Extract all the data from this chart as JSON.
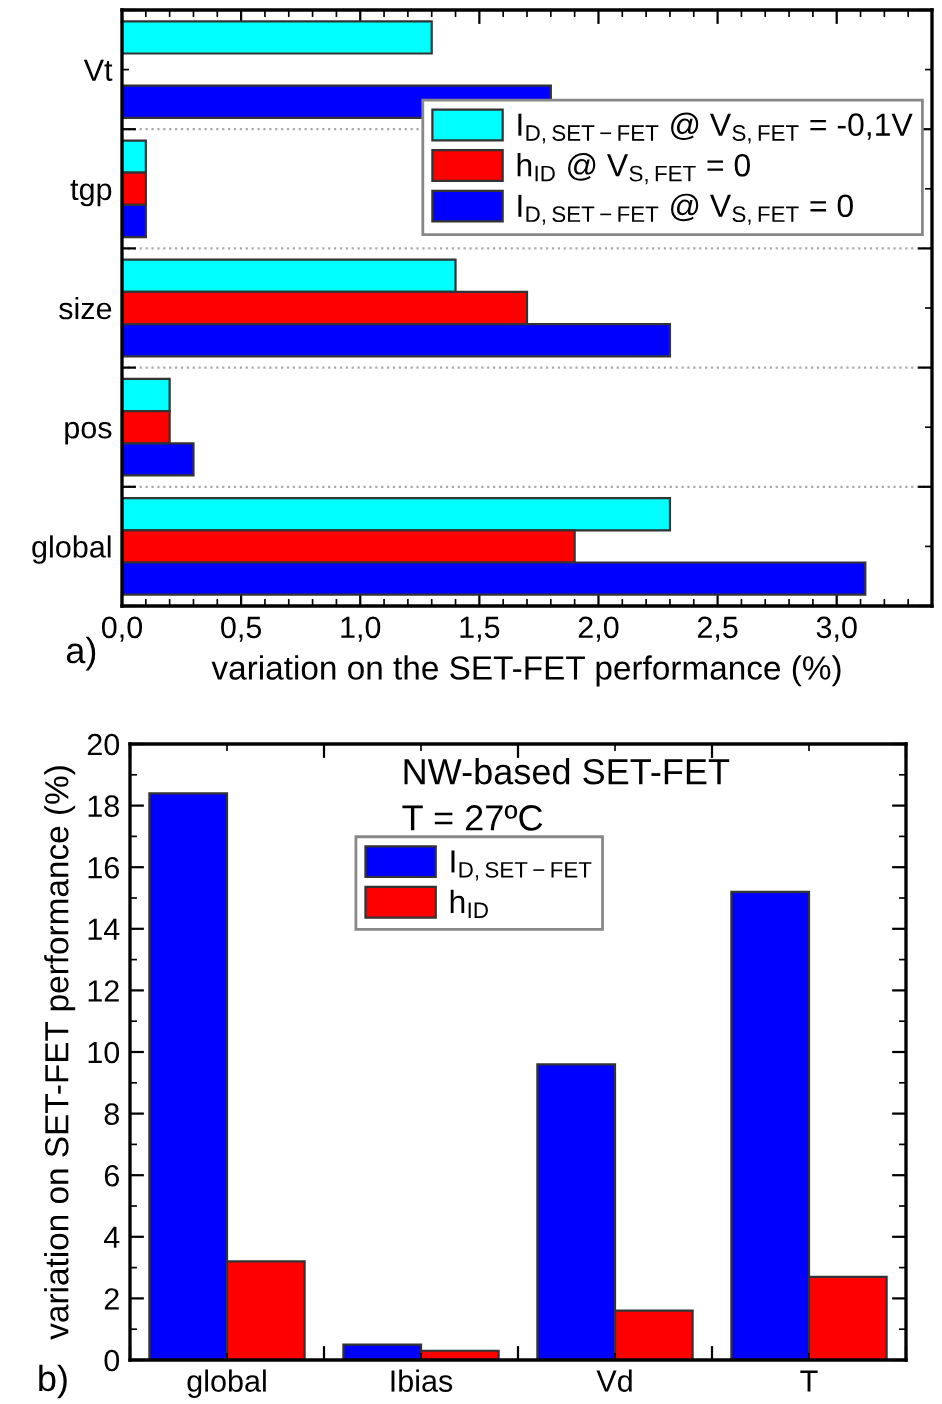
{
  "chart_data": [
    {
      "type": "bar",
      "orientation": "horizontal",
      "xlabel": "variation on the SET-FET performance (%)",
      "categories": [
        "Vt",
        "tgp",
        "size",
        "pos",
        "global"
      ],
      "series": [
        {
          "name": "I$_{D,SET−FET}$ @ V$_{S,FET}$ = -0,1V",
          "color": "#00ffff",
          "values": [
            1.3,
            0.1,
            1.4,
            0.2,
            2.3
          ]
        },
        {
          "name": "h$_{ID}$ @ V$_{S,FET}$ = 0",
          "color": "#ff0000",
          "values": [
            null,
            0.1,
            1.7,
            0.2,
            1.9
          ]
        },
        {
          "name": "I$_{D,SET−FET}$ @ V$_{S,FET}$ = 0",
          "color": "#0000ff",
          "values": [
            1.8,
            0.1,
            2.3,
            0.3,
            3.12
          ]
        }
      ],
      "xlim": [
        0,
        3.4
      ],
      "xticks": [
        {
          "value": 0,
          "label": "0,0"
        },
        {
          "value": 0.5,
          "label": "0,5"
        },
        {
          "value": 1,
          "label": "1,0"
        },
        {
          "value": 1.5,
          "label": "1,5"
        },
        {
          "value": 2,
          "label": "2,0"
        },
        {
          "value": 2.5,
          "label": "2,5"
        },
        {
          "value": 3,
          "label": "3,0"
        }
      ],
      "grid": "y",
      "legend": "top right",
      "annotations": [
        "a)"
      ]
    },
    {
      "type": "bar",
      "ylabel": "variation on SET-FET performance (%)",
      "categories": [
        "global",
        "Ibias",
        "Vd",
        "T"
      ],
      "series": [
        {
          "name": "I$_{D,SET−FET}$",
          "color": "#0000ff",
          "values": [
            18.4,
            0.5,
            9.6,
            15.2
          ]
        },
        {
          "name": "h$_{ID}$",
          "color": "#ff0000",
          "values": [
            3.2,
            0.3,
            1.6,
            2.7
          ]
        }
      ],
      "ylim": [
        0,
        20
      ],
      "yticks": [
        0,
        2,
        4,
        6,
        8,
        10,
        12,
        14,
        16,
        18,
        20
      ],
      "legend": "top",
      "annotations": [
        "NW-based SET-FET",
        "T = 27ºC",
        "b)"
      ]
    }
  ]
}
